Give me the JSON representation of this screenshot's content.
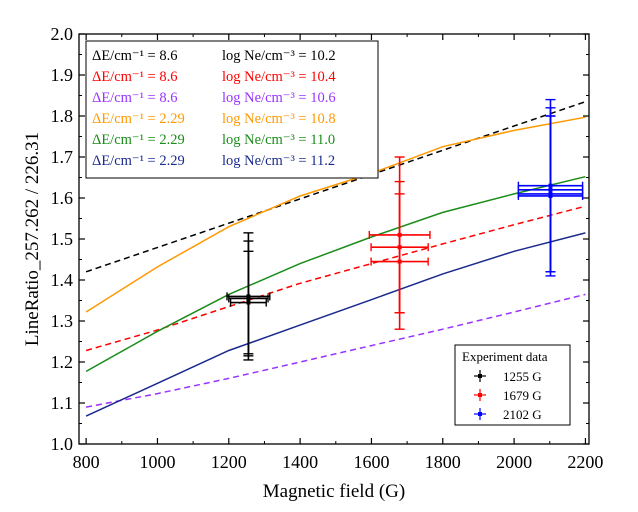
{
  "chart_data": {
    "type": "line",
    "xlabel": "Magnetic field (G)",
    "ylabel": "LineRatio_257.262 / 226.31",
    "xlim": [
      780,
      2210
    ],
    "ylim": [
      1.0,
      2.0
    ],
    "xticks": [
      800,
      1000,
      1200,
      1400,
      1600,
      1800,
      2000,
      2200
    ],
    "xtick_labels": [
      "800",
      "1000",
      "1200",
      "1400",
      "1600",
      "1800",
      "2000",
      "2200"
    ],
    "yticks": [
      1.0,
      1.1,
      1.2,
      1.3,
      1.4,
      1.5,
      1.6,
      1.7,
      1.8,
      1.9,
      2.0
    ],
    "ytick_labels": [
      "1.0",
      "1.1",
      "1.2",
      "1.3",
      "1.4",
      "1.5",
      "1.6",
      "1.7",
      "1.8",
      "1.9",
      "2.0"
    ],
    "legend_placement": "top-left",
    "series": [
      {
        "de_label": "ΔE/cm⁻¹ = 8.6",
        "ne_label": "log Ne/cm⁻³ = 10.2",
        "color": "#000000",
        "dashed": true,
        "x": [
          800,
          2200
        ],
        "y": [
          1.42,
          1.835
        ]
      },
      {
        "de_label": "ΔE/cm⁻¹ = 8.6",
        "ne_label": "log Ne/cm⁻³ = 10.4",
        "color": "#ff0000",
        "dashed": true,
        "x": [
          800,
          1000,
          1200,
          1400,
          1600,
          1800,
          2000,
          2200
        ],
        "y": [
          1.228,
          1.278,
          1.335,
          1.392,
          1.44,
          1.488,
          1.535,
          1.58
        ]
      },
      {
        "de_label": "ΔE/cm⁻¹ = 8.6",
        "ne_label": "log Ne/cm⁻³ = 10.6",
        "color": "#9933ff",
        "dashed": true,
        "x": [
          800,
          1000,
          1200,
          1400,
          1600,
          1800,
          2000,
          2200
        ],
        "y": [
          1.09,
          1.123,
          1.16,
          1.2,
          1.24,
          1.28,
          1.322,
          1.365
        ]
      },
      {
        "de_label": "ΔE/cm⁻¹ = 2.29",
        "ne_label": "log Ne/cm⁻³ = 10.8",
        "color": "#ff9900",
        "dashed": false,
        "x": [
          800,
          1000,
          1200,
          1400,
          1600,
          1800,
          2000,
          2200
        ],
        "y": [
          1.322,
          1.432,
          1.53,
          1.605,
          1.66,
          1.725,
          1.765,
          1.797
        ]
      },
      {
        "de_label": "ΔE/cm⁻¹ = 2.29",
        "ne_label": "log Ne/cm⁻³ = 11.0",
        "color": "#1a8c1a",
        "dashed": false,
        "x": [
          800,
          1000,
          1200,
          1400,
          1600,
          1800,
          2000,
          2200
        ],
        "y": [
          1.177,
          1.275,
          1.365,
          1.44,
          1.505,
          1.565,
          1.61,
          1.652
        ]
      },
      {
        "de_label": "ΔE/cm⁻¹ = 2.29",
        "ne_label": "log Ne/cm⁻³ = 11.2",
        "color": "#1a2a8c",
        "dashed": false,
        "x": [
          800,
          1000,
          1200,
          1400,
          1600,
          1800,
          2000,
          2200
        ],
        "y": [
          1.068,
          1.148,
          1.228,
          1.29,
          1.352,
          1.415,
          1.47,
          1.515
        ]
      }
    ],
    "experiment": {
      "title": "Experiment data",
      "groups": [
        {
          "label": "1255 G",
          "color": "#000000",
          "x": 1255,
          "points": [
            {
              "y": 1.36,
              "xerr": 60,
              "yerr": 0.155
            },
            {
              "y": 1.355,
              "xerr": 55,
              "yerr": 0.14
            },
            {
              "y": 1.345,
              "xerr": 50,
              "yerr": 0.125
            }
          ]
        },
        {
          "label": "1679 G",
          "color": "#ff0000",
          "x": 1679,
          "points": [
            {
              "y": 1.51,
              "xerr": 85,
              "yerr": 0.19
            },
            {
              "y": 1.48,
              "xerr": 80,
              "yerr": 0.16
            },
            {
              "y": 1.445,
              "xerr": 80,
              "yerr": 0.165
            }
          ]
        },
        {
          "label": "2102 G",
          "color": "#0000ff",
          "x": 2102,
          "points": [
            {
              "y": 1.63,
              "xerr": 90,
              "yerr": 0.21
            },
            {
              "y": 1.62,
              "xerr": 90,
              "yerr": 0.2
            },
            {
              "y": 1.61,
              "xerr": 90,
              "yerr": 0.19
            },
            {
              "y": 1.605,
              "xerr": 90,
              "yerr": 0.195
            }
          ]
        }
      ]
    }
  }
}
